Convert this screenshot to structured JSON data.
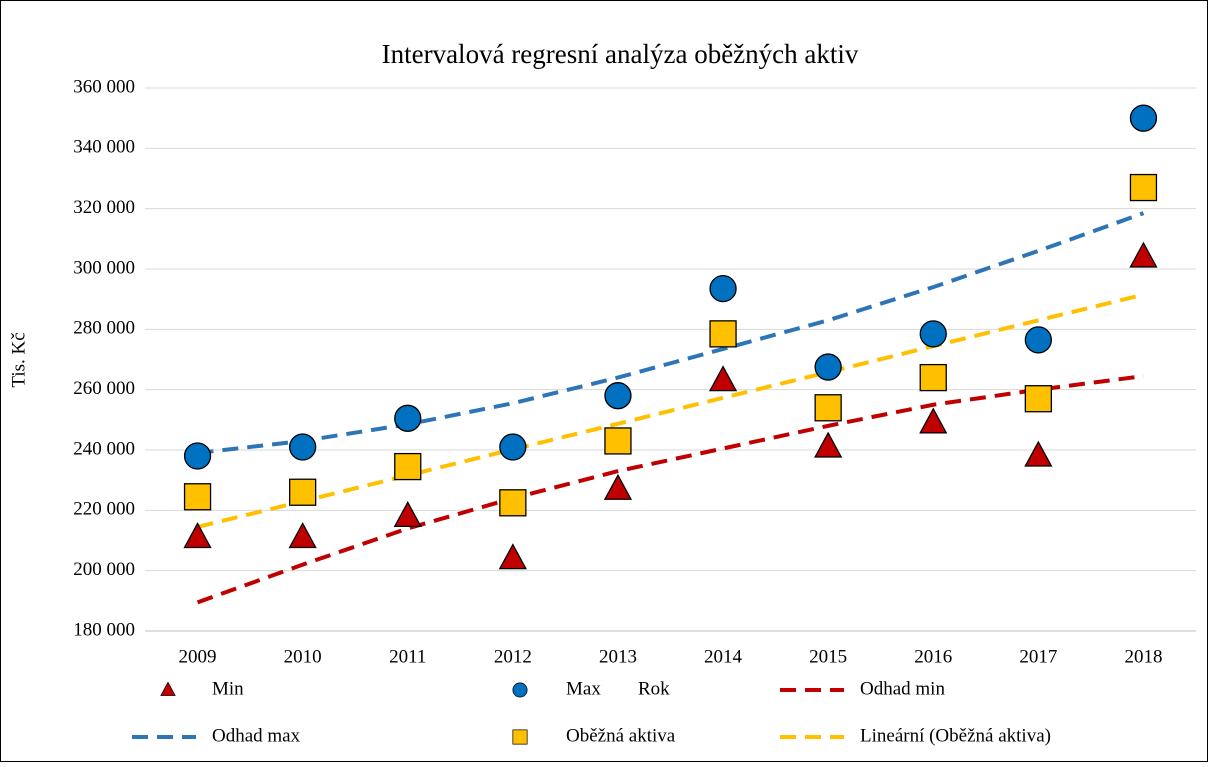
{
  "chart_data": {
    "type": "scatter",
    "title": "Intervalová regresní analýza oběžných aktiv",
    "y_label": "Tis. Kč",
    "categories": [
      "2009",
      "2010",
      "2011",
      "2012",
      "2013",
      "2014",
      "2015",
      "2016",
      "2017",
      "2018"
    ],
    "ylim": [
      180000,
      360000
    ],
    "yticks": [
      {
        "value": 180000,
        "label": "180 000"
      },
      {
        "value": 200000,
        "label": "200 000"
      },
      {
        "value": 220000,
        "label": "220 000"
      },
      {
        "value": 240000,
        "label": "240 000"
      },
      {
        "value": 260000,
        "label": "260 000"
      },
      {
        "value": 280000,
        "label": "280 000"
      },
      {
        "value": 300000,
        "label": "300 000"
      },
      {
        "value": 320000,
        "label": "320 000"
      },
      {
        "value": 340000,
        "label": "340 000"
      },
      {
        "value": 360000,
        "label": "360 000"
      }
    ],
    "grid": true,
    "legend": "bottom",
    "series": [
      {
        "name": "Min",
        "style": "triangle",
        "color": "#c00000",
        "values": [
          211000,
          211000,
          218000,
          204000,
          227000,
          263000,
          241000,
          249000,
          238000,
          304000
        ]
      },
      {
        "name": "Max",
        "style": "circle",
        "color": "#0070c0",
        "values": [
          238000,
          241000,
          250500,
          241000,
          258000,
          293500,
          267500,
          278500,
          276500,
          350000
        ]
      },
      {
        "name": "Rok",
        "style": "none"
      },
      {
        "name": "Odhad min",
        "style": "dash",
        "color": "#c00000",
        "values": [
          189500,
          202000,
          214000,
          224000,
          233000,
          240500,
          248000,
          255000,
          260000,
          264500
        ]
      },
      {
        "name": "Odhad max",
        "style": "dash",
        "color": "#2e75b6",
        "values": [
          239000,
          243000,
          248500,
          255500,
          264000,
          273500,
          283000,
          294000,
          306000,
          318500
        ]
      },
      {
        "name": "Oběžná aktiva",
        "style": "square",
        "color": "#ffc000",
        "values": [
          224500,
          226000,
          234500,
          222500,
          243000,
          278500,
          254000,
          264000,
          257000,
          327000
        ]
      },
      {
        "name": "Lineární (Oběžná aktiva)",
        "style": "dash",
        "color": "#ffc000",
        "values": [
          214500,
          223000,
          231600,
          240200,
          248700,
          257300,
          265800,
          274400,
          283000,
          291500
        ]
      }
    ]
  }
}
